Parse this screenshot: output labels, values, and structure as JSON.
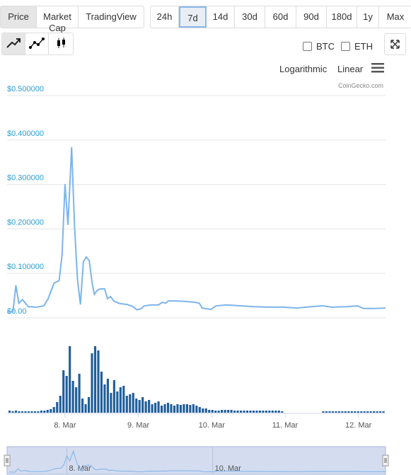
{
  "tabs": [
    "Price",
    "Market Cap",
    "TradingView"
  ],
  "ranges": [
    "24h",
    "7d",
    "14d",
    "30d",
    "60d",
    "90d",
    "180d",
    "1y",
    "Max"
  ],
  "selected_range": 1,
  "compare": [
    "BTC",
    "ETH"
  ],
  "scale_options": [
    "Logarithmic",
    "Linear"
  ],
  "credit": "CoinGecko.com",
  "chart_data": [
    {
      "type": "line",
      "x": [
        7.21,
        7.29,
        7.33,
        7.37,
        7.42,
        7.5,
        7.61,
        7.71,
        7.77,
        7.85,
        7.92,
        7.96,
        8.0,
        8.04,
        8.09,
        8.13,
        8.17,
        8.21,
        8.25,
        8.29,
        8.33,
        8.37,
        8.4,
        8.44,
        8.48,
        8.54,
        8.58,
        8.62,
        8.67,
        8.75,
        8.85,
        8.93,
        8.98,
        9.04,
        9.08,
        9.18,
        9.27,
        9.33,
        9.37,
        9.41,
        9.52,
        9.64,
        9.77,
        9.83,
        9.87,
        9.99,
        10.06,
        10.2,
        10.39,
        10.58,
        10.78,
        10.97,
        11.16,
        11.35,
        11.51,
        11.64,
        11.84,
        11.99,
        12.07,
        12.22,
        12.37
      ],
      "series": [
        {
          "name": "Price",
          "color": "#7cb5ec",
          "values": [
            0.014,
            0.014,
            0.073,
            0.033,
            0.041,
            0.025,
            0.024,
            0.027,
            0.043,
            0.078,
            0.084,
            0.142,
            0.301,
            0.209,
            0.384,
            0.205,
            0.086,
            0.03,
            0.126,
            0.137,
            0.129,
            0.078,
            0.053,
            0.062,
            0.065,
            0.065,
            0.043,
            0.048,
            0.037,
            0.032,
            0.03,
            0.025,
            0.018,
            0.021,
            0.027,
            0.029,
            0.029,
            0.035,
            0.033,
            0.038,
            0.038,
            0.037,
            0.035,
            0.033,
            0.022,
            0.019,
            0.027,
            0.029,
            0.027,
            0.025,
            0.024,
            0.024,
            0.022,
            0.025,
            0.027,
            0.024,
            0.025,
            0.027,
            0.021,
            0.021,
            0.022
          ]
        }
      ],
      "xlim": [
        7.21,
        12.37
      ],
      "xticks": [
        {
          "value": 8,
          "label": "8. Mar"
        },
        {
          "value": 9,
          "label": "9. Mar"
        },
        {
          "value": 10,
          "label": "10. Mar"
        },
        {
          "value": 11,
          "label": "11. Mar"
        },
        {
          "value": 12,
          "label": "12. Mar"
        }
      ],
      "ylim": [
        0,
        0.5
      ],
      "yticks": [
        {
          "value": 0,
          "label": "$0.00"
        },
        {
          "value": 0.1,
          "label": "$0.100000"
        },
        {
          "value": 0.2,
          "label": "$0.200000"
        },
        {
          "value": 0.3,
          "label": "$0.300000"
        },
        {
          "value": 0.4,
          "label": "$0.400000"
        },
        {
          "value": 0.5,
          "label": "$0.500000"
        }
      ],
      "grid": true
    },
    {
      "type": "bar",
      "color": "#1f5e9c",
      "ylim": [
        0,
        100
      ],
      "values": [
        3,
        2,
        3,
        2,
        2,
        2,
        2,
        2,
        2,
        2,
        3,
        3,
        4,
        5,
        8,
        15,
        24,
        60,
        52,
        94,
        45,
        36,
        55,
        20,
        12,
        22,
        84,
        94,
        88,
        58,
        40,
        48,
        28,
        46,
        30,
        36,
        38,
        24,
        26,
        28,
        20,
        18,
        22,
        16,
        18,
        12,
        14,
        16,
        10,
        12,
        14,
        12,
        10,
        12,
        11,
        12,
        12,
        11,
        12,
        10,
        8,
        6,
        6,
        4,
        4,
        3,
        3,
        4,
        4,
        4,
        4,
        3,
        3,
        3,
        3,
        3,
        3,
        3,
        3,
        3,
        3,
        3,
        3,
        3,
        3,
        3,
        2,
        null,
        null,
        null,
        null,
        null,
        null,
        null,
        null,
        null,
        null,
        null,
        null,
        2,
        2,
        2,
        2,
        2,
        2,
        2,
        2,
        2,
        2,
        2,
        2,
        2,
        2,
        2,
        2,
        2,
        2,
        2,
        2
      ]
    },
    {
      "type": "navigator",
      "xlim": [
        7.21,
        12.37
      ],
      "xticks": [
        {
          "value": 8,
          "label": "8. Mar"
        },
        {
          "value": 10,
          "label": "10. Mar"
        }
      ]
    }
  ]
}
